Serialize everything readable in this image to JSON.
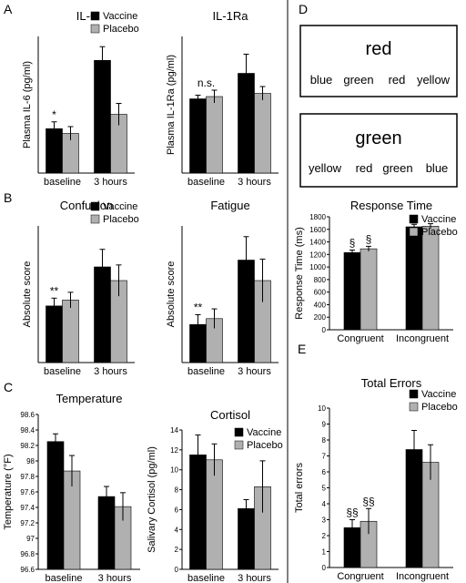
{
  "panel_letters": {
    "A": "A",
    "B": "B",
    "C": "C",
    "D": "D",
    "E": "E"
  },
  "colors": {
    "vaccine": "#000000",
    "placebo": "#b0b0b0",
    "red": "#e0202a",
    "green_text": "#2a9a3a",
    "blue_text": "#1f3fa0",
    "yellow_text": "#e8e000"
  },
  "legend": {
    "vaccine": "Vaccine",
    "placebo": "Placebo"
  },
  "stroop": {
    "card1": {
      "target": "red",
      "target_color": "#e0202a",
      "words": [
        {
          "text": "blue",
          "color": "#e0202a"
        },
        {
          "text": "green",
          "color": "#e0202a"
        },
        {
          "text": "red",
          "color": "#e0202a"
        },
        {
          "text": "yellow",
          "color": "#e0202a"
        }
      ]
    },
    "card2": {
      "target": "green",
      "target_color": "#e0202a",
      "words": [
        {
          "text": "yellow",
          "color": "#2a9a3a"
        },
        {
          "text": "red",
          "color": "#1f3fa0"
        },
        {
          "text": "green",
          "color": "#e8e000"
        },
        {
          "text": "blue",
          "color": "#e0202a"
        }
      ]
    }
  },
  "chart_data": [
    {
      "id": "il6",
      "type": "bar",
      "title": "IL-6",
      "ylabel": "Plasma IL-6 (pg/ml)",
      "xlabel": "",
      "categories": [
        "baseline",
        "3 hours"
      ],
      "ylim": [
        0,
        2
      ],
      "yticks": [],
      "series": [
        {
          "name": "Vaccine",
          "values": [
            0.65,
            1.65
          ],
          "errors": [
            0.1,
            0.2
          ]
        },
        {
          "name": "Placebo",
          "values": [
            0.58,
            0.86
          ],
          "errors": [
            0.1,
            0.16
          ]
        }
      ],
      "annotations": [
        {
          "category": 0,
          "series": 0,
          "text": "*"
        }
      ],
      "legend": "top-right"
    },
    {
      "id": "il1ra",
      "type": "bar",
      "title": "IL-1Ra",
      "ylabel": "Plasma IL-1Ra (pg/ml)",
      "xlabel": "",
      "categories": [
        "baseline",
        "3 hours"
      ],
      "ylim": [
        0,
        300
      ],
      "yticks": [],
      "series": [
        {
          "name": "Vaccine",
          "values": [
            163,
            219
          ],
          "errors": [
            8,
            42
          ]
        },
        {
          "name": "Placebo",
          "values": [
            168,
            175
          ],
          "errors": [
            14,
            15
          ]
        }
      ],
      "annotations": [
        {
          "category": 0,
          "series": "both",
          "text": "n.s."
        }
      ],
      "legend": "none"
    },
    {
      "id": "confusion",
      "type": "bar",
      "title": "Confusion",
      "ylabel": "Absolute score",
      "xlabel": "",
      "categories": [
        "baseline",
        "3 hours"
      ],
      "ylim": [
        0,
        7
      ],
      "yticks": [],
      "series": [
        {
          "name": "Vaccine",
          "values": [
            2.9,
            4.9
          ],
          "errors": [
            0.4,
            0.9
          ]
        },
        {
          "name": "Placebo",
          "values": [
            3.2,
            4.2
          ],
          "errors": [
            0.4,
            0.8
          ]
        }
      ],
      "annotations": [
        {
          "category": 0,
          "series": 0,
          "text": "**"
        }
      ],
      "legend": "top-right"
    },
    {
      "id": "fatigue",
      "type": "bar",
      "title": "Fatigue",
      "ylabel": "Absolute score",
      "xlabel": "",
      "categories": [
        "baseline",
        "3 hours"
      ],
      "ylim": [
        0,
        7
      ],
      "yticks": [],
      "series": [
        {
          "name": "Vaccine",
          "values": [
            1.95,
            5.25
          ],
          "errors": [
            0.5,
            1.2
          ]
        },
        {
          "name": "Placebo",
          "values": [
            2.25,
            4.2
          ],
          "errors": [
            0.5,
            1.1
          ]
        }
      ],
      "annotations": [
        {
          "category": 0,
          "series": 0,
          "text": "**"
        }
      ],
      "legend": "none"
    },
    {
      "id": "temperature",
      "type": "bar",
      "title": "Temperature",
      "ylabel": "Temperature (°F)",
      "xlabel": "",
      "categories": [
        "baseline",
        "3 hours"
      ],
      "ylim": [
        96.6,
        98.6
      ],
      "yticks": [
        "96.6",
        "96.8",
        "97",
        "97.2",
        "97.4",
        "97.6",
        "97.8",
        "98",
        "98.2",
        "98.4",
        "98.6"
      ],
      "ytick_values": [
        96.6,
        96.8,
        97,
        97.2,
        97.4,
        97.6,
        97.8,
        98,
        98.2,
        98.4,
        98.6
      ],
      "series": [
        {
          "name": "Vaccine",
          "values": [
            98.25,
            97.54
          ],
          "errors": [
            0.1,
            0.13
          ]
        },
        {
          "name": "Placebo",
          "values": [
            97.87,
            97.41
          ],
          "errors": [
            0.2,
            0.18
          ]
        }
      ],
      "annotations": [],
      "legend": "none"
    },
    {
      "id": "cortisol",
      "type": "bar",
      "title": "Cortisol",
      "ylabel": "Salivary Cortisol (pg/ml)",
      "xlabel": "",
      "categories": [
        "baseline",
        "3 hours"
      ],
      "ylim": [
        0,
        14
      ],
      "yticks": [
        "0",
        "2",
        "4",
        "6",
        "8",
        "10",
        "12",
        "14"
      ],
      "ytick_values": [
        0,
        2,
        4,
        6,
        8,
        10,
        12,
        14
      ],
      "series": [
        {
          "name": "Vaccine",
          "values": [
            11.5,
            6.1
          ],
          "errors": [
            2.0,
            0.9
          ]
        },
        {
          "name": "Placebo",
          "values": [
            11.0,
            8.3
          ],
          "errors": [
            1.6,
            2.6
          ]
        }
      ],
      "annotations": [],
      "legend": "top-right"
    },
    {
      "id": "response_time",
      "type": "bar",
      "title": "Response Time",
      "ylabel": "Response Time (ms)",
      "xlabel": "",
      "categories": [
        "Congruent",
        "Incongruent"
      ],
      "ylim": [
        0,
        1800
      ],
      "yticks": [
        "0",
        "200",
        "400",
        "600",
        "800",
        "1000",
        "1200",
        "1400",
        "1600",
        "1800"
      ],
      "ytick_values": [
        0,
        200,
        400,
        600,
        800,
        1000,
        1200,
        1400,
        1600,
        1800
      ],
      "series": [
        {
          "name": "Vaccine",
          "values": [
            1230,
            1640
          ],
          "errors": [
            40,
            40
          ]
        },
        {
          "name": "Placebo",
          "values": [
            1290,
            1650
          ],
          "errors": [
            40,
            40
          ]
        }
      ],
      "annotations": [
        {
          "category": 0,
          "series": 0,
          "text": "§"
        },
        {
          "category": 0,
          "series": 1,
          "text": "§"
        }
      ],
      "legend": "top-right"
    },
    {
      "id": "total_errors",
      "type": "bar",
      "title": "Total Errors",
      "ylabel": "Total errors",
      "xlabel": "",
      "categories": [
        "Congruent",
        "Incongruent"
      ],
      "ylim": [
        0,
        10
      ],
      "yticks": [
        "0",
        "1",
        "2",
        "3",
        "4",
        "5",
        "6",
        "7",
        "8",
        "9",
        "10"
      ],
      "ytick_values": [
        0,
        1,
        2,
        3,
        4,
        5,
        6,
        7,
        8,
        9,
        10
      ],
      "series": [
        {
          "name": "Vaccine",
          "values": [
            2.5,
            7.4
          ],
          "errors": [
            0.5,
            1.2
          ]
        },
        {
          "name": "Placebo",
          "values": [
            2.9,
            6.6
          ],
          "errors": [
            0.8,
            1.1
          ]
        }
      ],
      "annotations": [
        {
          "category": 0,
          "series": 0,
          "text": "§§"
        },
        {
          "category": 0,
          "series": 1,
          "text": "§§"
        }
      ],
      "legend": "top-right"
    }
  ]
}
